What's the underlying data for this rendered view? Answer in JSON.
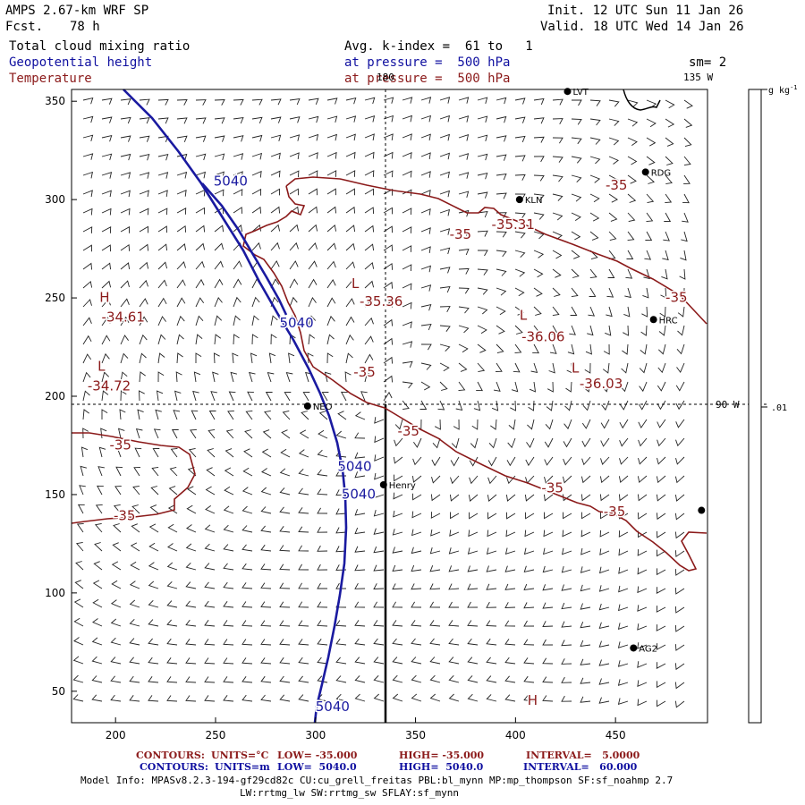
{
  "header": {
    "model": "AMPS 2.67-km WRF SP",
    "forecast_label": "Fcst.",
    "forecast_hours": "78 h",
    "init": "Init. 12 UTC Sun 11 Jan 26",
    "valid": "Valid. 18 UTC Wed 14 Jan 26",
    "field1": "Total cloud mixing ratio",
    "field2": "Geopotential height",
    "field3": "Temperature",
    "avg_text": "Avg. k-index =  61 to   1",
    "pressure_text_1": "at pressure =  500 hPa",
    "pressure_text_2": "at pressure =  500 hPa",
    "smoothing": "sm= 2"
  },
  "colors": {
    "geopotential": "#1a1aa0",
    "temperature": "#8b1a1a",
    "barbs": "#000000",
    "text": "#000000"
  },
  "map": {
    "x_ticks": [
      "200",
      "250",
      "300",
      "350",
      "400",
      "450"
    ],
    "y_ticks": [
      "50",
      "100",
      "150",
      "200",
      "250",
      "300",
      "350"
    ],
    "meridian_labels": {
      "top": "180",
      "upper_right": "135 W",
      "right": "90 W"
    },
    "colorbar_unit": "g kg",
    "colorbar_unit_exp": "-1",
    "colorbar_value": ".01",
    "stations": [
      {
        "label": "LVT",
        "x": 426,
        "y": 355
      },
      {
        "label": "RDG",
        "x": 465,
        "y": 314
      },
      {
        "label": "KLN",
        "x": 402,
        "y": 300
      },
      {
        "label": "HRC",
        "x": 469,
        "y": 239
      },
      {
        "label": "NEO",
        "x": 296,
        "y": 195
      },
      {
        "label": "Henry",
        "x": 334,
        "y": 155
      },
      {
        "label": "AG2",
        "x": 459,
        "y": 72
      },
      {
        "label": "",
        "x": 493,
        "y": 142
      }
    ],
    "geopotential_labels": [
      {
        "text": "5040",
        "x": 249,
        "y": 307
      },
      {
        "text": "5040",
        "x": 282,
        "y": 235
      },
      {
        "text": "5040",
        "x": 311,
        "y": 162
      },
      {
        "text": "5040",
        "x": 313,
        "y": 148
      },
      {
        "text": "5040",
        "x": 300,
        "y": 40
      }
    ],
    "temperature_labels": [
      {
        "text": "-35",
        "x": 367,
        "y": 280
      },
      {
        "text": "-35.31",
        "x": 388,
        "y": 285
      },
      {
        "text": "L",
        "x": 318,
        "y": 255
      },
      {
        "text": "-35.36",
        "x": 322,
        "y": 246
      },
      {
        "text": "H",
        "x": 192,
        "y": 248
      },
      {
        "text": "-34.61",
        "x": 193,
        "y": 238
      },
      {
        "text": "L",
        "x": 402,
        "y": 239
      },
      {
        "text": "-36.06",
        "x": 403,
        "y": 228
      },
      {
        "text": "L",
        "x": 191,
        "y": 213
      },
      {
        "text": "-34.72",
        "x": 186,
        "y": 203
      },
      {
        "text": "-35",
        "x": 319,
        "y": 210
      },
      {
        "text": "L",
        "x": 428,
        "y": 212
      },
      {
        "text": "-36.03",
        "x": 432,
        "y": 204
      },
      {
        "text": "-35",
        "x": 197,
        "y": 173
      },
      {
        "text": "-35",
        "x": 341,
        "y": 180
      },
      {
        "text": "-35",
        "x": 445,
        "y": 305
      },
      {
        "text": "-35",
        "x": 475,
        "y": 248
      },
      {
        "text": "-35",
        "x": 413,
        "y": 151
      },
      {
        "text": "-35",
        "x": 444,
        "y": 139
      },
      {
        "text": "-35",
        "x": 199,
        "y": 137
      },
      {
        "text": "H",
        "x": 406,
        "y": 43
      }
    ]
  },
  "footer": {
    "contours_temp": {
      "label": "CONTOURS:",
      "units": "UNITS=°C",
      "low": "LOW= -35.000",
      "high": "HIGH= -35.000",
      "interval": "INTERVAL=   5.0000"
    },
    "contours_hgt": {
      "label": "CONTOURS:",
      "units": "UNITS=m",
      "low": "LOW=  5040.0",
      "high": "HIGH=  5040.0",
      "interval": "INTERVAL=   60.000"
    },
    "model_info_1": "Model Info: MPASv8.2.3-194-gf29cd82c CU:cu_grell_freitas PBL:bl_mynn MP:mp_thompson SF:sf_noahmp 2.7",
    "model_info_2": "LW:rrtmg_lw SW:rrtmg_sw SFLAY:sf_mynn"
  }
}
